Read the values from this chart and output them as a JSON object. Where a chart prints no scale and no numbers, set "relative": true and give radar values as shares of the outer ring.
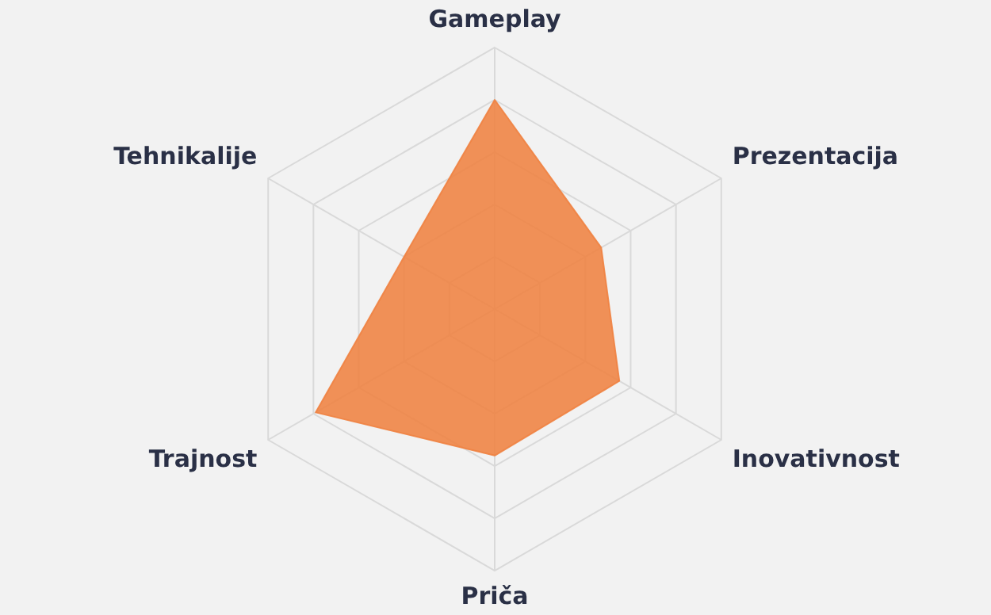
{
  "chart_data": {
    "type": "radar",
    "relative": true,
    "grid": true,
    "legend": false,
    "categories": [
      "Gameplay",
      "Prezentacija",
      "Inovativnost",
      "Priča",
      "Trajnost",
      "Tehnikalije"
    ],
    "series": [
      {
        "color": "#ef8241",
        "values": [
          0.8,
          0.47,
          0.55,
          0.56,
          0.79,
          0.4
        ]
      }
    ]
  }
}
